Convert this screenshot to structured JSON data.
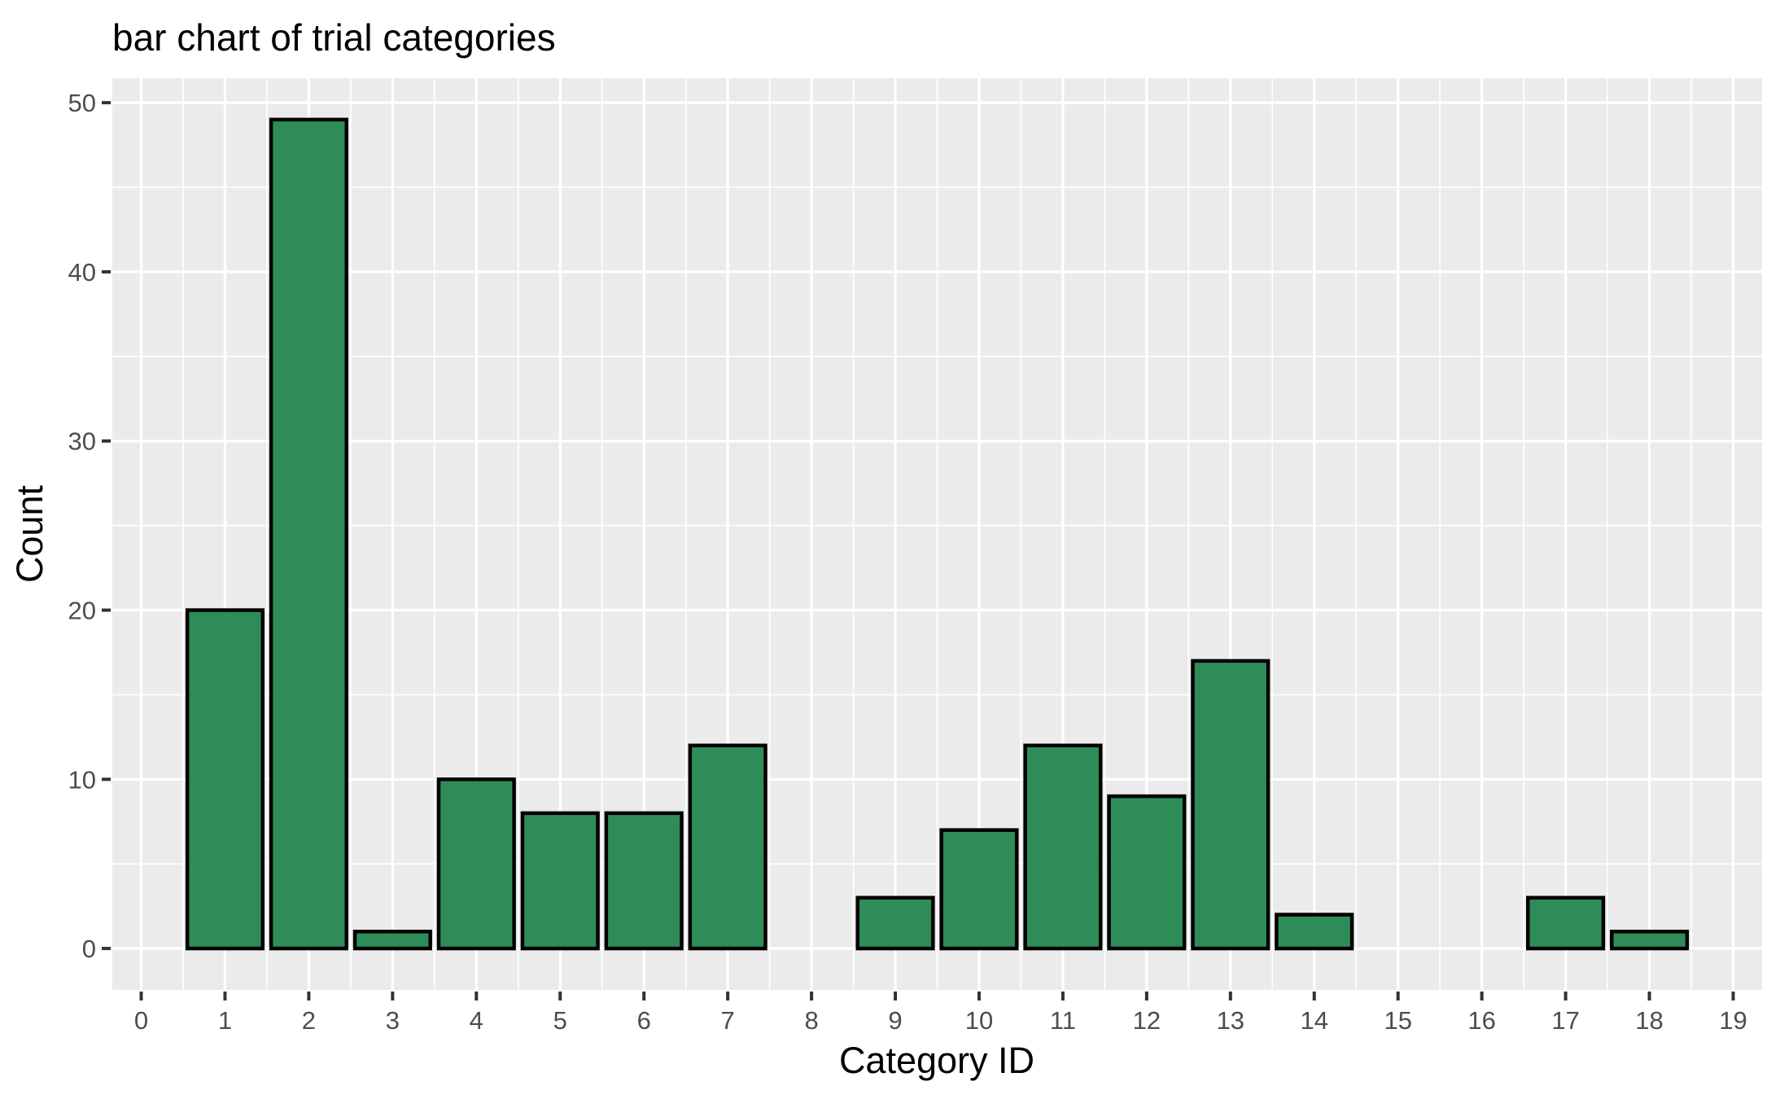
{
  "title": "bar chart of trial categories",
  "chart_data": {
    "type": "bar",
    "title": "bar chart of trial categories",
    "xlabel": "Category ID",
    "ylabel": "Count",
    "categories": [
      0,
      1,
      2,
      3,
      4,
      5,
      6,
      7,
      8,
      9,
      10,
      11,
      12,
      13,
      14,
      15,
      16,
      17,
      18,
      19
    ],
    "values": [
      0,
      20,
      49,
      1,
      10,
      8,
      8,
      12,
      0,
      3,
      7,
      12,
      9,
      17,
      2,
      0,
      0,
      3,
      1,
      0
    ],
    "x_ticks": [
      0,
      1,
      2,
      3,
      4,
      5,
      6,
      7,
      8,
      9,
      10,
      11,
      12,
      13,
      14,
      15,
      16,
      17,
      18,
      19
    ],
    "y_ticks": [
      0,
      10,
      20,
      30,
      40,
      50
    ],
    "y_minor_ticks": [
      5,
      15,
      25,
      35,
      45
    ],
    "xlim": [
      -0.345,
      19.345
    ],
    "ylim": [
      -2.45,
      51.45
    ],
    "bar_width": 0.9,
    "grid": "major-and-minor",
    "legend": "none",
    "colors": {
      "bar_fill": "#2e8c59",
      "bar_stroke": "#000000",
      "panel_bg": "#ebebeb",
      "grid_line": "#ffffff",
      "tick_mark": "#333333",
      "tick_label": "#4d4d4d",
      "title_text": "#000000",
      "page_bg": "#ffffff"
    }
  }
}
